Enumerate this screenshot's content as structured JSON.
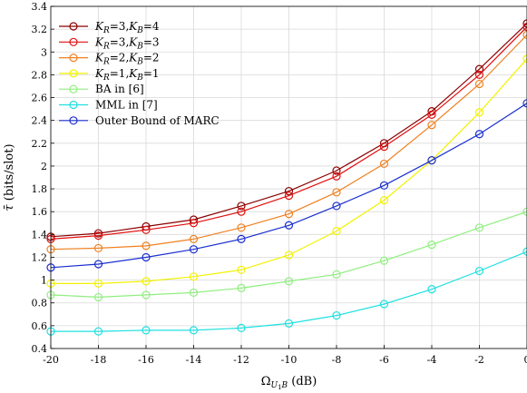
{
  "chart_data": {
    "type": "line",
    "xlabel_main": "Ω",
    "xlabel_sub": "U",
    "xlabel_subsub": "1",
    "xlabel_sub2": "B",
    "xlabel_unit": " (dB)",
    "ylabel_main": "τ̄",
    "ylabel_unit": " (bits/slot)",
    "xlim": [
      -20,
      0
    ],
    "ylim": [
      0.4,
      3.4
    ],
    "grid": true,
    "legend_position": "top-left",
    "x": [
      -20,
      -18,
      -16,
      -14,
      -12,
      -10,
      -8,
      -6,
      -4,
      -2,
      0
    ],
    "x_tick_labels": [
      "-20",
      "-18",
      "-16",
      "-14",
      "-12",
      "-10",
      "-8",
      "-6",
      "-4",
      "-2",
      "0"
    ],
    "y_ticks": [
      0.4,
      0.6,
      0.8,
      1.0,
      1.2,
      1.4,
      1.6,
      1.8,
      2.0,
      2.2,
      2.4,
      2.6,
      2.8,
      3.0,
      3.2,
      3.4
    ],
    "y_tick_labels": [
      "0.4",
      "0.6",
      "0.8",
      "1",
      "1.2",
      "1.4",
      "1.6",
      "1.8",
      "2",
      "2.2",
      "2.4",
      "2.6",
      "2.8",
      "3",
      "3.2",
      "3.4"
    ],
    "series": [
      {
        "name_parts": [
          "K",
          "R",
          "=3,",
          "K",
          "B",
          "=4"
        ],
        "color": "#8b0000",
        "values": [
          1.38,
          1.41,
          1.47,
          1.53,
          1.65,
          1.78,
          1.96,
          2.2,
          2.48,
          2.85,
          3.25
        ]
      },
      {
        "name_parts": [
          "K",
          "R",
          "=3,",
          "K",
          "B",
          "=3"
        ],
        "color": "#e01010",
        "values": [
          1.36,
          1.39,
          1.44,
          1.5,
          1.6,
          1.74,
          1.91,
          2.17,
          2.45,
          2.8,
          3.22
        ]
      },
      {
        "name_parts": [
          "K",
          "R",
          "=2,",
          "K",
          "B",
          "=2"
        ],
        "color": "#f08020",
        "values": [
          1.27,
          1.28,
          1.3,
          1.36,
          1.46,
          1.58,
          1.77,
          2.02,
          2.36,
          2.72,
          3.15
        ]
      },
      {
        "name_parts": [
          "K",
          "R",
          "=1,",
          "K",
          "B",
          "=1"
        ],
        "color": "#f2f200",
        "values": [
          0.97,
          0.97,
          0.99,
          1.03,
          1.09,
          1.22,
          1.43,
          1.7,
          2.05,
          2.47,
          2.94
        ]
      },
      {
        "name": "BA in [6]",
        "color": "#90ee80",
        "values": [
          0.87,
          0.85,
          0.87,
          0.89,
          0.93,
          0.99,
          1.05,
          1.17,
          1.31,
          1.46,
          1.6
        ]
      },
      {
        "name": "MML in [7]",
        "color": "#20e0e0",
        "values": [
          0.55,
          0.55,
          0.56,
          0.56,
          0.58,
          0.62,
          0.69,
          0.79,
          0.92,
          1.08,
          1.25
        ]
      },
      {
        "name": "Outer Bound of MARC",
        "color": "#1a2fd0",
        "values": [
          1.11,
          1.14,
          1.2,
          1.27,
          1.36,
          1.48,
          1.65,
          1.83,
          2.05,
          2.28,
          2.55
        ]
      }
    ]
  }
}
